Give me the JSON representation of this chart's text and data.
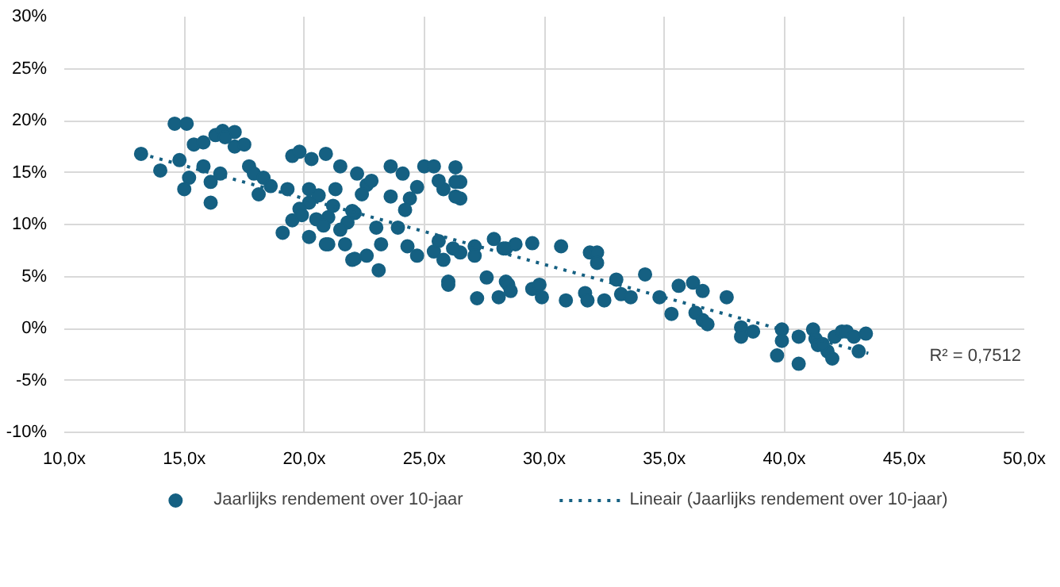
{
  "chart_data": {
    "type": "scatter",
    "xlim": [
      10,
      50
    ],
    "ylim": [
      -10,
      30
    ],
    "xticks": [
      {
        "value": 10,
        "label": "10,0x"
      },
      {
        "value": 15,
        "label": "15,0x"
      },
      {
        "value": 20,
        "label": "20,0x"
      },
      {
        "value": 25,
        "label": "25,0x"
      },
      {
        "value": 30,
        "label": "30,0x"
      },
      {
        "value": 35,
        "label": "35,0x"
      },
      {
        "value": 40,
        "label": "40,0x"
      },
      {
        "value": 45,
        "label": "45,0x"
      },
      {
        "value": 50,
        "label": "50,0x"
      }
    ],
    "yticks": [
      {
        "value": -10,
        "label": "-10%"
      },
      {
        "value": -5,
        "label": "-5%"
      },
      {
        "value": 0,
        "label": "0%"
      },
      {
        "value": 5,
        "label": "5%"
      },
      {
        "value": 10,
        "label": "10%"
      },
      {
        "value": 15,
        "label": "15%"
      },
      {
        "value": 20,
        "label": "20%"
      },
      {
        "value": 25,
        "label": "25%"
      },
      {
        "value": 30,
        "label": "30%"
      }
    ],
    "grid": true,
    "legend": "bottom",
    "annotations": [
      "R² = 0,7512"
    ],
    "series": [
      {
        "name": "Jaarlijks rendement over 10-jaar",
        "marker": "circle",
        "color": "#156082",
        "x": [
          13.2,
          14.0,
          14.6,
          15.1,
          14.8,
          15.2,
          15.0,
          16.1,
          15.8,
          16.1,
          16.5,
          15.4,
          15.8,
          16.3,
          16.6,
          17.1,
          17.1,
          17.5,
          16.7,
          17.7,
          17.9,
          18.3,
          18.6,
          18.1,
          19.1,
          19.5,
          19.5,
          19.8,
          20.3,
          20.9,
          21.5,
          22.2,
          22.6,
          22.0,
          21.0,
          20.2,
          22.8,
          23.6,
          23.6,
          24.1,
          25.0,
          25.4,
          26.3,
          26.5,
          26.5,
          25.8,
          24.7,
          24.4,
          24.2,
          20.9,
          21.7,
          22.1,
          22.6,
          23.1,
          23.2,
          23.0,
          23.9,
          24.3,
          24.7,
          25.4,
          25.8,
          26.5,
          27.1,
          27.1,
          27.9,
          28.4,
          28.8,
          27.6,
          26.0,
          28.4,
          21.0,
          22.1,
          20.2,
          19.3,
          20.2,
          21.3,
          22.4,
          19.8,
          20.5,
          21.2,
          21.8,
          20.6,
          19.9,
          21.5,
          22.0,
          20.8,
          25.6,
          26.3,
          26.3,
          25.6,
          26.2,
          28.3,
          29.5,
          30.7,
          31.9,
          32.2,
          32.2,
          26.0,
          27.2,
          28.1,
          28.5,
          28.6,
          29.5,
          29.8,
          29.9,
          30.9,
          31.7,
          31.8,
          32.5,
          33.0,
          33.2,
          33.6,
          34.2,
          34.8,
          35.3,
          35.6,
          36.2,
          36.6,
          36.3,
          36.6,
          36.8,
          37.6,
          38.2,
          38.2,
          38.7,
          39.9,
          39.9,
          39.7,
          40.6,
          40.6,
          41.2,
          41.3,
          41.4,
          41.8,
          42.0,
          42.1,
          42.4,
          42.6,
          42.9,
          43.1,
          43.4,
          41.6
        ],
        "values": [
          16.8,
          15.2,
          19.7,
          19.7,
          16.2,
          14.5,
          13.4,
          12.1,
          15.6,
          14.1,
          14.9,
          17.7,
          17.9,
          18.6,
          19.0,
          18.9,
          17.5,
          17.7,
          18.4,
          15.6,
          14.9,
          14.5,
          13.7,
          12.9,
          9.2,
          10.4,
          16.6,
          17.0,
          16.3,
          16.8,
          15.6,
          14.9,
          13.8,
          6.6,
          8.1,
          8.8,
          14.2,
          12.7,
          15.6,
          14.9,
          15.6,
          15.6,
          15.5,
          14.1,
          12.5,
          13.4,
          13.6,
          12.5,
          11.4,
          8.1,
          8.1,
          6.7,
          7.0,
          5.6,
          8.1,
          9.7,
          9.7,
          7.9,
          7.0,
          7.4,
          6.6,
          7.3,
          7.9,
          7.0,
          8.6,
          7.7,
          8.1,
          4.9,
          4.5,
          4.5,
          10.7,
          11.1,
          12.1,
          13.4,
          13.4,
          13.4,
          12.9,
          11.5,
          10.5,
          11.8,
          10.2,
          12.8,
          10.9,
          9.5,
          11.3,
          9.9,
          14.2,
          14.1,
          12.7,
          8.4,
          7.7,
          7.7,
          8.2,
          7.9,
          7.3,
          7.3,
          6.3,
          4.2,
          2.9,
          3.0,
          4.2,
          3.6,
          3.8,
          4.2,
          3.0,
          2.7,
          3.4,
          2.7,
          2.7,
          4.7,
          3.3,
          3.0,
          5.2,
          3.0,
          1.4,
          4.1,
          4.4,
          3.6,
          1.5,
          0.8,
          0.4,
          3.0,
          0.1,
          -0.8,
          -0.3,
          -0.1,
          -1.2,
          -2.6,
          -3.4,
          -0.8,
          -0.1,
          -1.0,
          -1.6,
          -2.2,
          -2.9,
          -0.8,
          -0.3,
          -0.3,
          -0.8,
          -2.2,
          -0.5,
          -1.5
        ]
      },
      {
        "name": "Lineair (Jaarlijks rendement over 10-jaar)",
        "type": "line",
        "color": "#156082",
        "line_style": "dotted",
        "x": [
          13.2,
          43.5
        ],
        "values": [
          16.8,
          -2.4
        ]
      }
    ]
  }
}
